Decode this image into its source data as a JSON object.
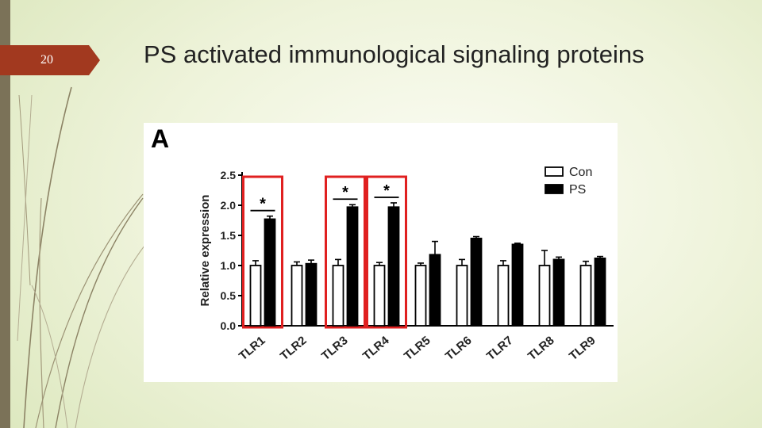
{
  "slide": {
    "number": "20",
    "title": "PS activated immunological signaling proteins",
    "colors": {
      "accent": "#a2391f",
      "sidebar": "#7b7258",
      "highlight_box": "#e02020"
    }
  },
  "chart_data": {
    "type": "bar",
    "panel_label": "A",
    "title": "",
    "xlabel": "",
    "ylabel": "Relative expression",
    "ylim": [
      0,
      2.5
    ],
    "yticks": [
      "0.0",
      "0.5",
      "1.0",
      "1.5",
      "2.0",
      "2.5"
    ],
    "categories": [
      "TLR1",
      "TLR2",
      "TLR3",
      "TLR4",
      "TLR5",
      "TLR6",
      "TLR7",
      "TLR8",
      "TLR9"
    ],
    "series": [
      {
        "name": "Con",
        "color": "#ffffff",
        "values": [
          1.0,
          1.0,
          1.0,
          1.0,
          1.0,
          1.0,
          1.0,
          1.0,
          1.0
        ],
        "errors": [
          0.08,
          0.06,
          0.1,
          0.05,
          0.04,
          0.1,
          0.08,
          0.25,
          0.07
        ]
      },
      {
        "name": "PS",
        "color": "#000000",
        "values": [
          1.77,
          1.03,
          1.97,
          1.97,
          1.18,
          1.45,
          1.35,
          1.1,
          1.12
        ],
        "errors": [
          0.05,
          0.06,
          0.04,
          0.07,
          0.22,
          0.03,
          0.02,
          0.04,
          0.03
        ]
      }
    ],
    "significance_marker": "*",
    "significant": [
      "TLR1",
      "TLR3",
      "TLR4"
    ],
    "highlighted": [
      "TLR1",
      "TLR3",
      "TLR4"
    ],
    "legend": {
      "position": "top-right",
      "entries": [
        "Con",
        "PS"
      ]
    },
    "grid": false
  }
}
